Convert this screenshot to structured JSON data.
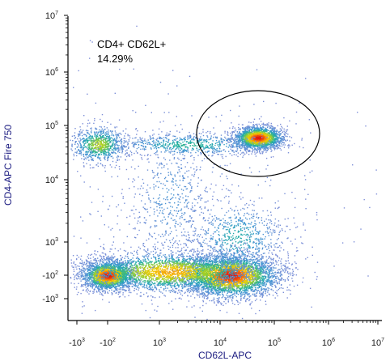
{
  "chart_data": {
    "type": "scatter",
    "subtype": "flow-cytometry-density-plot",
    "title": "",
    "xlabel": "CD62L-APC",
    "ylabel": "CD4-APC Fire 750",
    "x_scale": "biexponential",
    "y_scale": "biexponential",
    "x_ticks": [
      {
        "base": "-10",
        "exp": "3",
        "value": -1000
      },
      {
        "base": "-10",
        "exp": "2",
        "value": -100
      },
      {
        "base": "10",
        "exp": "3",
        "value": 1000
      },
      {
        "base": "10",
        "exp": "4",
        "value": 10000
      },
      {
        "base": "10",
        "exp": "5",
        "value": 100000
      },
      {
        "base": "10",
        "exp": "6",
        "value": 1000000
      },
      {
        "base": "10",
        "exp": "7",
        "value": 10000000
      }
    ],
    "y_ticks": [
      {
        "base": "10",
        "exp": "7",
        "value": 10000000
      },
      {
        "base": "10",
        "exp": "6",
        "value": 1000000
      },
      {
        "base": "10",
        "exp": "5",
        "value": 100000
      },
      {
        "base": "10",
        "exp": "4",
        "value": 10000
      },
      {
        "base": "10",
        "exp": "3",
        "value": 1000
      },
      {
        "base": "-10",
        "exp": "2",
        "value": -100
      },
      {
        "base": "-10",
        "exp": "3",
        "value": -1000
      }
    ],
    "gate": {
      "shape": "ellipse",
      "label": "CD4+ CD62L+",
      "percent": "14.29%",
      "center": [
        30000,
        60000
      ]
    },
    "populations": [
      {
        "x": -100,
        "y": -100,
        "density": "high"
      },
      {
        "x": 15000,
        "y": -100,
        "density": "high"
      },
      {
        "x": 50000,
        "y": 60000,
        "density": "high"
      },
      {
        "x": -200,
        "y": 45000,
        "density": "medium"
      },
      {
        "x": 3000,
        "y": 45000,
        "density": "low"
      }
    ],
    "grid": false,
    "legend": "none",
    "colors": {
      "low": "#7f8fd8",
      "mid": "#1fb0a0",
      "medium_high": "#9ed02a",
      "high": "#f5c800",
      "peak": "#e01010",
      "axis_title": "#1a1a80"
    }
  }
}
